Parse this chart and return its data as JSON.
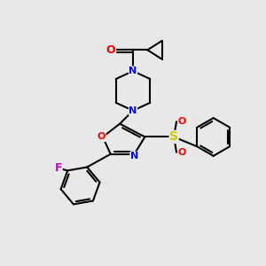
{
  "bg_color": "#e8e8e8",
  "bond_color": "#000000",
  "bond_width": 1.5,
  "atom_colors": {
    "N": "#0000ff",
    "O": "#ff0000",
    "F": "#cc00cc",
    "S": "#cccc00",
    "C": "#000000"
  },
  "font_size": 8,
  "fig_size": [
    3.0,
    3.0
  ],
  "dpi": 100
}
